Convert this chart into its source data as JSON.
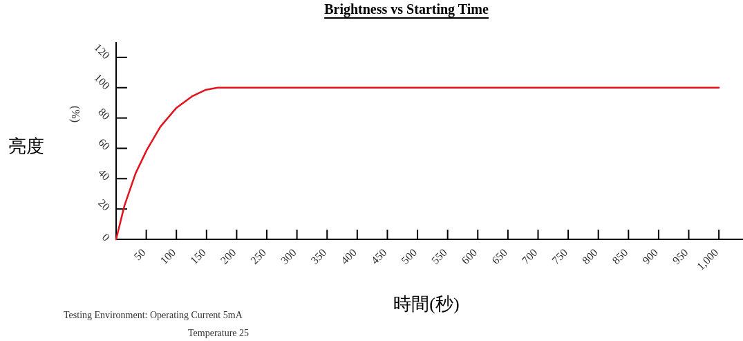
{
  "chart_data": {
    "type": "line",
    "title": "Brightness vs Starting Time",
    "xlabel": "時間(秒)",
    "ylabel": "亮度",
    "annotations": [
      "(%)",
      "Testing Environment: Operating Current 5mA",
      "Temperature 25"
    ],
    "series": [
      {
        "color": "#e3121c",
        "x": [
          0,
          13.8,
          32.4,
          51,
          73.5,
          99.6,
          125.7,
          148,
          168.5,
          1000
        ],
        "values": [
          0,
          22.2,
          43.6,
          59,
          74.3,
          86.5,
          94.2,
          98.5,
          100,
          100
        ]
      }
    ],
    "xlim": [
      0,
      1040
    ],
    "ylim": [
      0,
      130
    ],
    "xticks": [
      50,
      100,
      150,
      200,
      250,
      300,
      350,
      400,
      450,
      500,
      550,
      600,
      650,
      700,
      750,
      800,
      850,
      900,
      950,
      {
        "value": 1000,
        "label": "1,000"
      }
    ],
    "yticks": [
      0,
      20,
      40,
      60,
      80,
      100,
      120
    ]
  }
}
